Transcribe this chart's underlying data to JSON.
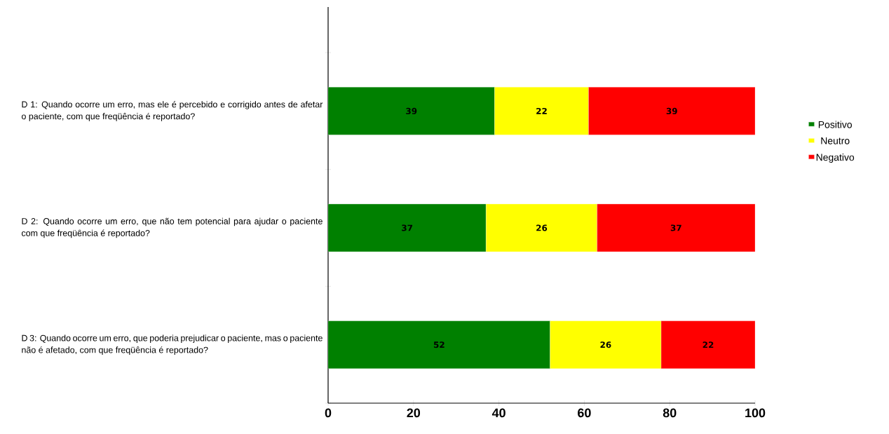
{
  "chart_data": {
    "type": "bar",
    "orientation": "horizontal",
    "stacked": true,
    "categories": [
      "D 1: Quando ocorre um erro, mas ele é percebido e corrigido antes de afetar o paciente, com que freqüência é reportado?",
      "D 2: Quando ocorre um erro, que não tem potencial para ajudar o paciente com que freqüência é reportado?",
      "D 3: Quando ocorre um erro, que poderia prejudicar o paciente, mas o paciente não é afetado, com que freqüência é reportado?"
    ],
    "series": [
      {
        "name": "Positivo",
        "color": "#008000",
        "values": [
          39,
          37,
          52
        ]
      },
      {
        "name": "Neutro",
        "color": "#ffff00",
        "values": [
          22,
          26,
          26
        ]
      },
      {
        "name": "Negativo",
        "color": "#ff0000",
        "values": [
          39,
          37,
          22
        ]
      }
    ],
    "xlim": [
      0,
      100
    ],
    "xticks": [
      0,
      20,
      40,
      60,
      80,
      100
    ],
    "data_labels": true,
    "legend": "right"
  }
}
